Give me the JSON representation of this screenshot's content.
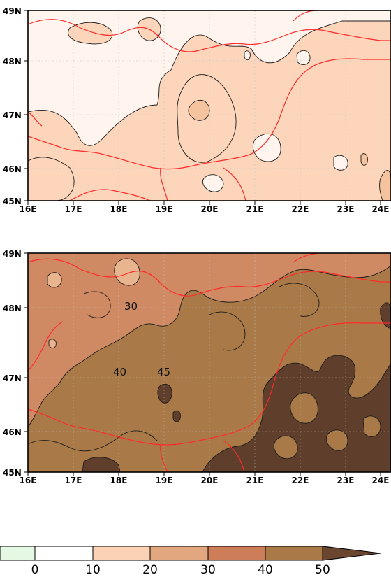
{
  "maps": [
    {
      "id": "top",
      "lat_labels": [
        "49N",
        "48N",
        "47N",
        "46N",
        "45N"
      ],
      "lon_labels": [
        "16E",
        "17E",
        "18E",
        "19E",
        "20E",
        "21E",
        "22E",
        "23E",
        "24E"
      ],
      "contour_labels": []
    },
    {
      "id": "bottom",
      "lat_labels": [
        "49N",
        "48N",
        "47N",
        "46N",
        "45N"
      ],
      "lon_labels": [
        "16E",
        "17E",
        "18E",
        "19E",
        "20E",
        "21E",
        "22E",
        "23E",
        "24E"
      ],
      "contour_labels": [
        "30",
        "40",
        "45"
      ]
    }
  ],
  "colorbar": {
    "levels": [
      "0",
      "10",
      "20",
      "30",
      "40",
      "50"
    ],
    "colors": [
      "#e4f8e4",
      "#ffffff",
      "#fcd2b6",
      "#e2a77f",
      "#cd7e58",
      "#a97a48",
      "#6a4630"
    ]
  },
  "colors": {
    "border": "#ff2a2a",
    "contour": "#1a1a1a",
    "grid": "#c8c8c8",
    "top_fill": [
      "#fff5ee",
      "#fcd5bb",
      "#f6c39f"
    ],
    "bottom_fill": [
      "#cf8a63",
      "#a97a48",
      "#5f3f2b",
      "#e9b58e"
    ]
  }
}
